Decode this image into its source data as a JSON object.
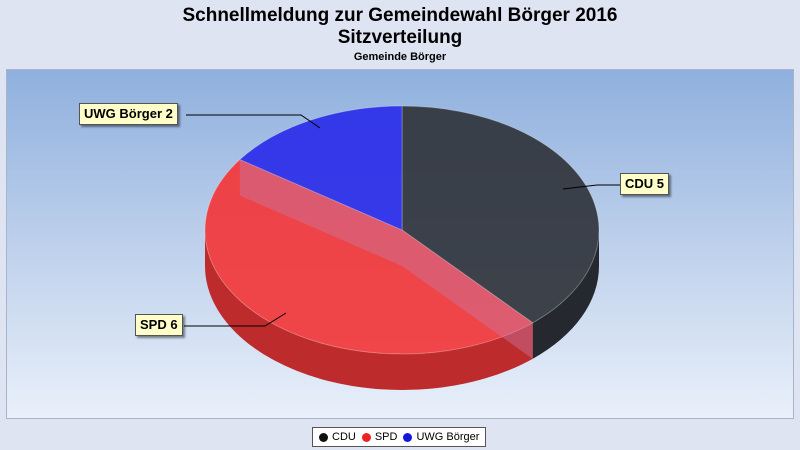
{
  "header": {
    "title": "Schnellmeldung zur Gemeindewahl Börger 2016",
    "subtitle": "Sitzverteilung",
    "caption": "Gemeinde Börger"
  },
  "chart_data": {
    "type": "pie",
    "title": "Schnellmeldung zur Gemeindewahl Börger 2016",
    "subtitle": "Sitzverteilung",
    "caption": "Gemeinde Börger",
    "legend_position": "bottom",
    "categories": [
      "CDU",
      "SPD",
      "UWG Börger"
    ],
    "values": [
      5,
      6,
      2
    ],
    "labels": [
      "CDU 5",
      "SPD 6",
      "UWG Börger 2"
    ],
    "colors": [
      "#30343c",
      "#f2373a",
      "#2a2ce8"
    ],
    "legend_colors": [
      "#111111",
      "#ee2222",
      "#1515dd"
    ]
  }
}
